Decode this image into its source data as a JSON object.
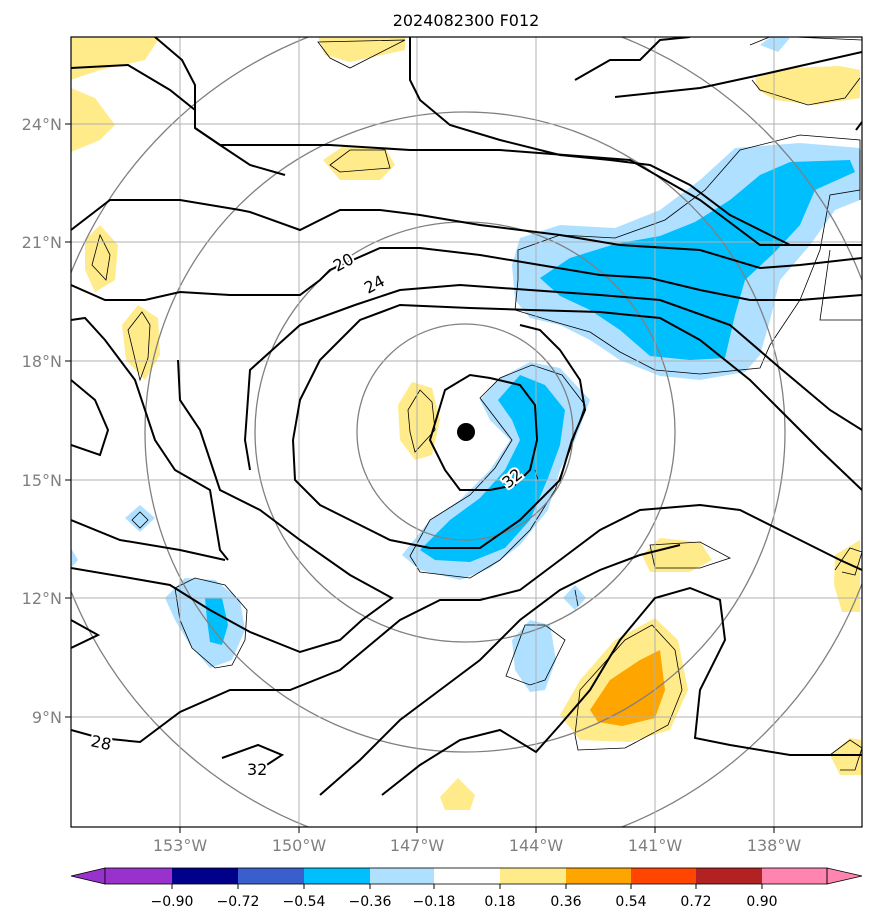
{
  "title": "2024082300 F012",
  "lon_labels": [
    "153°W",
    "150°W",
    "147°W",
    "144°W",
    "141°W",
    "138°W"
  ],
  "lat_labels": [
    "24°N",
    "21°N",
    "18°N",
    "15°N",
    "12°N",
    "9°N"
  ],
  "contour_labels": [
    "20",
    "24",
    "32",
    "28",
    "32"
  ],
  "colorbar": {
    "ticks": [
      "−0.90",
      "−0.72",
      "−0.54",
      "−0.36",
      "−0.18",
      "0.18",
      "0.36",
      "0.54",
      "0.72",
      "0.90"
    ],
    "colors": [
      "#9932cc",
      "#00008b",
      "#3a5fcd",
      "#00bfff",
      "#b0e0ff",
      "#ffffff",
      "#ffeb8a",
      "#ffa500",
      "#ff4500",
      "#b22222",
      "#ff85b0"
    ]
  },
  "colors": {
    "neg_light": "#b0e0ff",
    "neg_mid": "#00bfff",
    "pos_light": "#ffeb8a",
    "pos_mid": "#ffa500",
    "range_rings": "#808080",
    "grid": "#b0b0b0"
  },
  "marker": "storm-center-dot"
}
